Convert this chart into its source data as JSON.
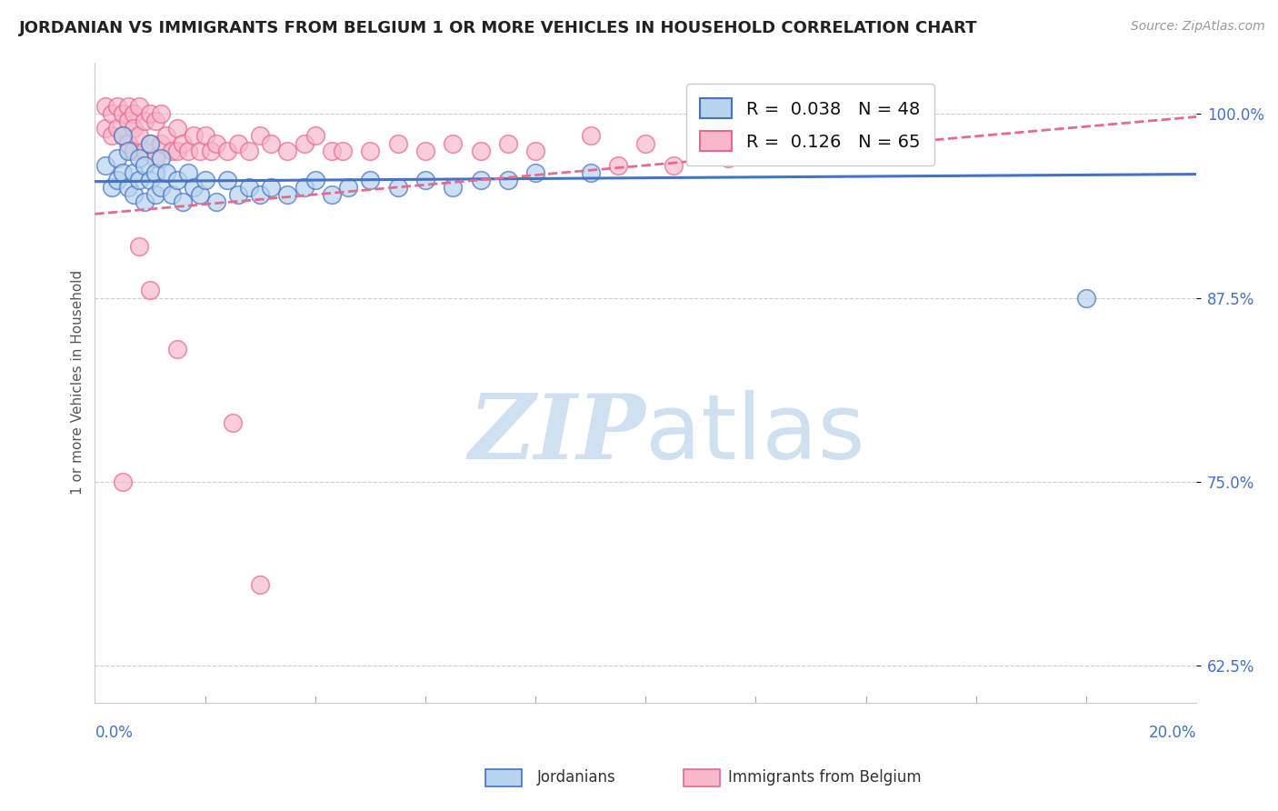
{
  "title": "JORDANIAN VS IMMIGRANTS FROM BELGIUM 1 OR MORE VEHICLES IN HOUSEHOLD CORRELATION CHART",
  "source": "Source: ZipAtlas.com",
  "ylabel": "1 or more Vehicles in Household",
  "xmin": 0.0,
  "xmax": 20.0,
  "ymin": 60.0,
  "ymax": 103.5,
  "ytick_vals": [
    62.5,
    75.0,
    87.5,
    100.0
  ],
  "legend_entries": [
    {
      "label": "Jordanians",
      "R": 0.038,
      "N": 48,
      "color": "#6baed6"
    },
    {
      "label": "Immigrants from Belgium",
      "R": 0.126,
      "N": 65,
      "color": "#e8698d"
    }
  ],
  "blue_color": "#4472c4",
  "pink_color": "#e8698d",
  "bg_color": "#ffffff",
  "watermark_color": "#cfe0f0",
  "jordanians_x": [
    0.2,
    0.3,
    0.4,
    0.4,
    0.5,
    0.5,
    0.6,
    0.6,
    0.7,
    0.7,
    0.8,
    0.8,
    0.9,
    0.9,
    1.0,
    1.0,
    1.1,
    1.1,
    1.2,
    1.2,
    1.3,
    1.4,
    1.5,
    1.6,
    1.7,
    1.8,
    1.9,
    2.0,
    2.2,
    2.4,
    2.6,
    2.8,
    3.0,
    3.2,
    3.5,
    3.8,
    4.0,
    4.3,
    4.6,
    5.0,
    5.5,
    6.0,
    6.5,
    7.0,
    7.5,
    8.0,
    9.0,
    18.0
  ],
  "jordanians_y": [
    96.5,
    95.0,
    97.0,
    95.5,
    98.5,
    96.0,
    97.5,
    95.0,
    96.0,
    94.5,
    97.0,
    95.5,
    96.5,
    94.0,
    98.0,
    95.5,
    96.0,
    94.5,
    97.0,
    95.0,
    96.0,
    94.5,
    95.5,
    94.0,
    96.0,
    95.0,
    94.5,
    95.5,
    94.0,
    95.5,
    94.5,
    95.0,
    94.5,
    95.0,
    94.5,
    95.0,
    95.5,
    94.5,
    95.0,
    95.5,
    95.0,
    95.5,
    95.0,
    95.5,
    95.5,
    96.0,
    96.0,
    87.5
  ],
  "belgians_x": [
    0.2,
    0.2,
    0.3,
    0.3,
    0.4,
    0.4,
    0.5,
    0.5,
    0.6,
    0.6,
    0.6,
    0.7,
    0.7,
    0.7,
    0.8,
    0.8,
    0.9,
    0.9,
    1.0,
    1.0,
    1.1,
    1.1,
    1.2,
    1.2,
    1.3,
    1.4,
    1.5,
    1.5,
    1.6,
    1.7,
    1.8,
    1.9,
    2.0,
    2.1,
    2.2,
    2.4,
    2.6,
    2.8,
    3.0,
    3.2,
    3.5,
    3.8,
    4.0,
    4.3,
    4.5,
    5.0,
    5.5,
    6.0,
    6.5,
    7.0,
    7.5,
    8.0,
    9.0,
    10.0,
    12.0,
    0.5,
    0.8,
    1.0,
    1.5,
    2.5,
    3.0,
    9.5,
    10.5,
    11.5,
    12.5
  ],
  "belgians_y": [
    100.5,
    99.0,
    100.0,
    98.5,
    100.5,
    99.0,
    100.0,
    98.5,
    100.5,
    99.5,
    98.0,
    100.0,
    99.0,
    97.5,
    100.5,
    98.5,
    99.5,
    97.5,
    100.0,
    98.0,
    99.5,
    97.0,
    100.0,
    98.0,
    98.5,
    97.5,
    99.0,
    97.5,
    98.0,
    97.5,
    98.5,
    97.5,
    98.5,
    97.5,
    98.0,
    97.5,
    98.0,
    97.5,
    98.5,
    98.0,
    97.5,
    98.0,
    98.5,
    97.5,
    97.5,
    97.5,
    98.0,
    97.5,
    98.0,
    97.5,
    98.0,
    97.5,
    98.5,
    98.0,
    98.5,
    75.0,
    91.0,
    88.0,
    84.0,
    79.0,
    68.0,
    96.5,
    96.5,
    97.0,
    97.5
  ],
  "blue_trend_x0": 0.0,
  "blue_trend_y0": 95.4,
  "blue_trend_x1": 20.0,
  "blue_trend_y1": 95.9,
  "pink_trend_x0": 0.0,
  "pink_trend_y0": 93.2,
  "pink_trend_x1": 20.0,
  "pink_trend_y1": 99.8
}
